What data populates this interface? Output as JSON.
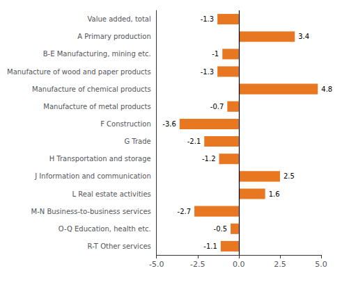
{
  "chart_data": {
    "type": "bar",
    "orientation": "horizontal",
    "categories": [
      "R-T Other services",
      "O-Q Education, health etc.",
      "M-N Business-to-business services",
      "L Real estate activities",
      "J Information and communication",
      "H Transportation and storage",
      "G Trade",
      "F Construction",
      "Manufacture of metal products",
      "Manufacture of chemical products",
      "Manufacture of wood and paper products",
      "B-E Manufacturing, mining etc.",
      "A Primary production",
      "Value added, total"
    ],
    "values": [
      -1.1,
      -0.5,
      -2.7,
      1.6,
      2.5,
      -1.2,
      -2.1,
      -3.6,
      -0.7,
      4.8,
      -1.3,
      -1.0,
      3.4,
      -1.3
    ],
    "color": "#E87722",
    "xlim": [
      -5.0,
      5.0
    ],
    "xticks": [
      {
        "value": -5,
        "label": "-5.0"
      },
      -2.5,
      {
        "value": 0,
        "label": "0.0"
      },
      2.5,
      {
        "value": 5,
        "label": "5.0"
      }
    ],
    "data_labels": true,
    "grid": false
  }
}
